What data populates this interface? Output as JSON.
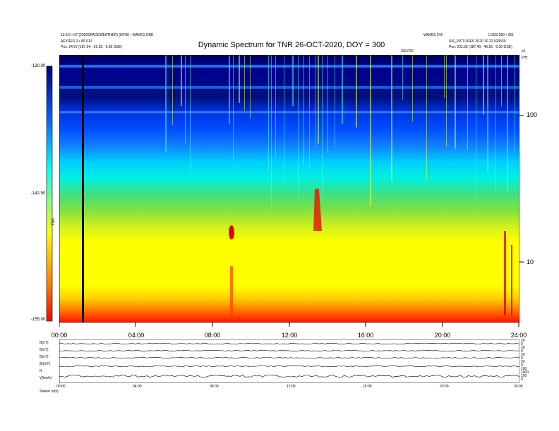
{
  "header": {
    "title": "Dynamic Spectrum for TNR 26-OCT-2020, DOY = 300",
    "left_info_1": "13.5.5 • 07 (2020SPACEWEATHER) (EPSI) • WAVES GRE",
    "left_info_2": "AEYRES 3 • 80 012",
    "left_info_3": "Pos:  24.57 (187.54, -51.35, -6.85 GSE)",
    "right_info_a": "WAVES 240",
    "right_info_b": "LOSS 000 • 361",
    "right_info_2": "SIS_PICTURES 2020 10 22 020530",
    "right_info_3": "Pos:  232.33 (187.40, -46.56, -6.30 GSE)",
    "mid_mark": "OEVOS",
    "right_mark": "kHz",
    "corner_mark": "e1"
  },
  "colorbar": {
    "label": "TNR",
    "max_label": "-130.00",
    "mid_label": "-142.50",
    "min_label": "-155.00",
    "vmax": -130.0,
    "vmin": -155.0,
    "colors": [
      "#ff0000",
      "#ff8000",
      "#ffff00",
      "#00ffff",
      "#0080ff",
      "#0000ff",
      "#000080"
    ]
  },
  "chart_data": {
    "type": "heatmap",
    "title": "Dynamic Spectrum for TNR 26-OCT-2020, DOY = 300",
    "x_ticks": [
      "00:00",
      "04:00",
      "08:00",
      "12:00",
      "16:00",
      "20:00",
      "24:00"
    ],
    "y_ticks": [
      "100",
      "10"
    ],
    "y_scale": "log",
    "value_range": [
      -155.0,
      -130.0
    ],
    "intensity_bands": [
      {
        "band": "lowest frequencies",
        "color": "red"
      },
      {
        "band": "low frequencies",
        "color": "yellow"
      },
      {
        "band": "mid frequencies",
        "color": "green"
      },
      {
        "band": "upper-mid frequencies",
        "color": "cyan"
      },
      {
        "band": "high frequencies",
        "color": "blue"
      },
      {
        "band": "highest frequencies",
        "color": "dark blue / black"
      }
    ],
    "notable_features": [
      {
        "time": "09:00",
        "kind": "red intensity spot"
      },
      {
        "time": "13:30",
        "kind": "red/orange vertical burst"
      },
      {
        "time": "23:30",
        "kind": "red streaks"
      },
      {
        "time": "01:10",
        "kind": "black vertical data gap line"
      }
    ]
  },
  "aux_panel": {
    "left_labels": [
      "B(nT)",
      "B(nT)",
      "B(nT)",
      "|B|(nT)",
      "N",
      "V(km/s)"
    ],
    "right_labels": [
      "20",
      "0",
      "20",
      "0",
      "20",
      "0",
      "20",
      "0",
      "100",
      "1000",
      "100",
      "0"
    ],
    "x_ticks": [
      "00:00",
      "04:00",
      "08:00",
      "12:00",
      "16:00",
      "20:00",
      "24:00"
    ],
    "footer": "Status: s(ts)"
  }
}
